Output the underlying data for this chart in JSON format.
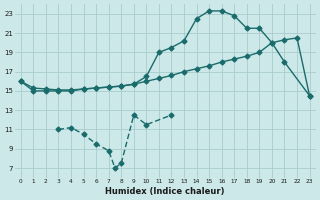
{
  "xlabel": "Humidex (Indice chaleur)",
  "bg_color": "#cce8e8",
  "grid_color": "#aacccc",
  "line_color": "#1a6b6b",
  "xlim": [
    -0.5,
    23.5
  ],
  "ylim": [
    6.0,
    24.0
  ],
  "xticks": [
    0,
    1,
    2,
    3,
    4,
    5,
    6,
    7,
    8,
    9,
    10,
    11,
    12,
    13,
    14,
    15,
    16,
    17,
    18,
    19,
    20,
    21,
    22,
    23
  ],
  "yticks": [
    7,
    9,
    11,
    13,
    15,
    17,
    19,
    21,
    23
  ],
  "curve1_x": [
    0,
    1,
    2,
    3,
    4,
    5,
    6,
    7,
    8,
    9,
    10,
    11,
    12,
    13,
    14,
    15,
    16,
    17,
    18,
    19,
    20,
    21,
    23
  ],
  "curve1_y": [
    16,
    15,
    15,
    15,
    15,
    15.2,
    15.3,
    15.4,
    15.5,
    15.7,
    16.5,
    19,
    19.5,
    20.2,
    22.5,
    23.3,
    23.3,
    22.8,
    21.5,
    21.5,
    20,
    18,
    14.5
  ],
  "curve2_x": [
    0,
    1,
    2,
    3,
    4,
    5,
    6,
    7,
    8,
    9,
    10,
    11,
    12,
    13,
    14,
    15,
    16,
    17,
    18,
    19,
    20,
    21,
    22,
    23
  ],
  "curve2_y": [
    16,
    15.3,
    15.2,
    15.1,
    15.1,
    15.2,
    15.3,
    15.4,
    15.5,
    15.7,
    16.0,
    16.3,
    16.6,
    17.0,
    17.3,
    17.6,
    18.0,
    18.3,
    18.6,
    19.0,
    20.0,
    20.3,
    20.5,
    14.5
  ],
  "curve3_x": [
    3,
    4,
    5,
    6,
    7,
    7.5,
    8,
    9,
    10,
    12
  ],
  "curve3_y": [
    11,
    11.2,
    10.5,
    9.5,
    8.8,
    7.0,
    7.5,
    12.5,
    11.5,
    12.5
  ],
  "markersize": 2.5,
  "linewidth": 1.0
}
